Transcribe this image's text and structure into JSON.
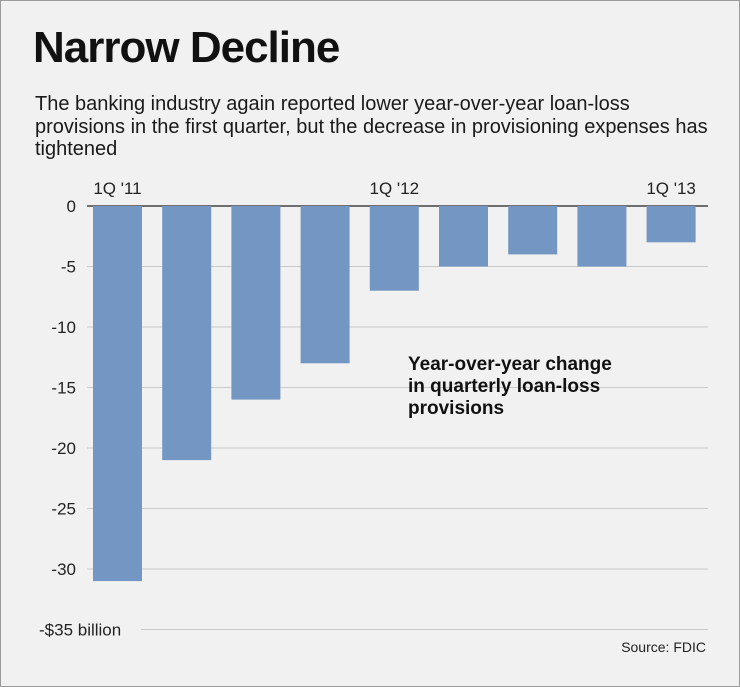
{
  "title": "Narrow Decline",
  "subtitle": "The banking industry again reported lower year-over-year loan-loss provisions in the first quarter, but the decrease in provisioning expenses has tightened",
  "source": "Source: FDIC",
  "chart_data": {
    "type": "bar",
    "categories": [
      "1Q '11",
      "",
      "",
      "",
      "1Q '12",
      "",
      "",
      "",
      "1Q '13"
    ],
    "values": [
      -31,
      -21,
      -16,
      -13,
      -7,
      -5,
      -4,
      -5,
      -3
    ],
    "annotation": [
      "Year-over-year change",
      "in quarterly loan-loss",
      "provisions"
    ],
    "ylim": [
      -35,
      0
    ],
    "yticks": [
      0,
      -5,
      -10,
      -15,
      -20,
      -25,
      -30,
      -35
    ],
    "ytick_labels": [
      "0",
      "-5",
      "-10",
      "-15",
      "-20",
      "-25",
      "-30",
      "-$35 billion"
    ],
    "grid": true,
    "bar_color": "#7396c3"
  }
}
